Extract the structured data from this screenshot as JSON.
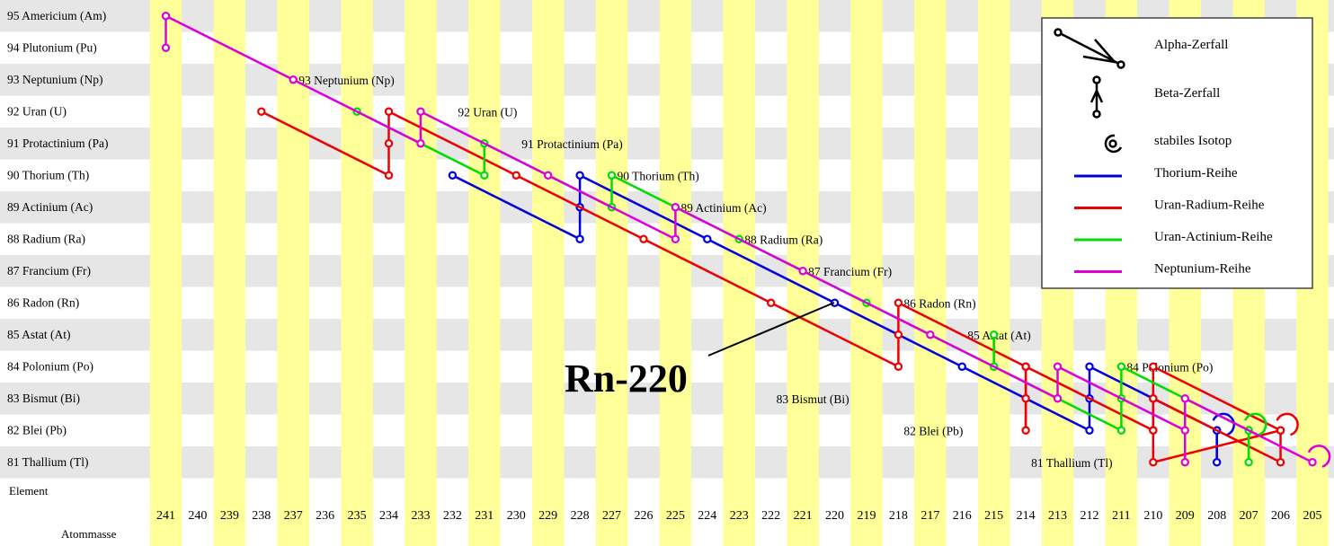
{
  "elements": [
    "95 Americium (Am)",
    "94 Plutonium (Pu)",
    "93 Neptunium (Np)",
    "92 Uran (U)",
    "91 Protactinium (Pa)",
    "90 Thorium (Th)",
    "89 Actinium (Ac)",
    "88 Radium (Ra)",
    "87 Francium (Fr)",
    "86 Radon (Rn)",
    "85 Astat (At)",
    "84 Polonium (Po)",
    "83 Bismut (Bi)",
    "82 Blei (Pb)",
    "81 Thallium (Tl)"
  ],
  "masses": [
    241,
    240,
    239,
    238,
    237,
    236,
    235,
    234,
    233,
    232,
    231,
    230,
    229,
    228,
    227,
    226,
    225,
    224,
    223,
    222,
    221,
    220,
    219,
    218,
    217,
    216,
    215,
    214,
    213,
    212,
    211,
    210,
    209,
    208,
    207,
    206,
    205
  ],
  "corner": {
    "element": "Element",
    "mass": "Atommasse"
  },
  "diagonal_labels": [
    {
      "z": 93,
      "a": 237,
      "text": "93 Neptunium (Np)"
    },
    {
      "z": 92,
      "a": 232,
      "text": "92 Uran (U)"
    },
    {
      "z": 91,
      "a": 230,
      "text": "91 Protactinium (Pa)"
    },
    {
      "z": 90,
      "a": 227,
      "text": "90 Thorium (Th)"
    },
    {
      "z": 89,
      "a": 225,
      "text": "89 Actinium (Ac)"
    },
    {
      "z": 88,
      "a": 223,
      "text": "88 Radium (Ra)"
    },
    {
      "z": 87,
      "a": 221,
      "text": "87 Francium (Fr)"
    },
    {
      "z": 86,
      "a": 218,
      "text": "86 Radon (Rn)"
    },
    {
      "z": 85,
      "a": 216,
      "text": "85 Astat (At)"
    },
    {
      "z": 84,
      "a": 211,
      "text": "84 Polonium (Po)"
    },
    {
      "z": 83,
      "a": 222,
      "text": "83 Bismut (Bi)"
    },
    {
      "z": 82,
      "a": 218,
      "text": "82 Blei (Pb)"
    },
    {
      "z": 81,
      "a": 214,
      "text": "81 Thallium (Tl)"
    }
  ],
  "highlight": {
    "label": "Rn-220",
    "z": 86,
    "a": 220
  },
  "legend": {
    "alpha": "Alpha-Zerfall",
    "beta": "Beta-Zerfall",
    "stable": "stabiles Isotop",
    "series_labels": [
      "Thorium-Reihe",
      "Uran-Radium-Reihe",
      "Uran-Actinium-Reihe",
      "Neptunium-Reihe"
    ]
  },
  "colors": {
    "thorium": "#0000dd",
    "uranium": "#ee0000",
    "actinium": "#00dd00",
    "neptunium": "#dd00dd",
    "row_stripe": "#e6e6e6",
    "col_stripe": "#ffff99",
    "legend_border": "#444444",
    "text": "#000000"
  },
  "series": [
    {
      "key": "thorium",
      "stable": [
        82,
        208
      ],
      "chain": [
        [
          90,
          232
        ],
        [
          88,
          228
        ],
        [
          89,
          228
        ],
        [
          90,
          228
        ],
        [
          88,
          224
        ],
        [
          86,
          220
        ],
        [
          84,
          216
        ],
        [
          82,
          212
        ],
        [
          83,
          212
        ],
        [
          84,
          212
        ],
        [
          82,
          208
        ],
        [
          81,
          208
        ],
        [
          82,
          208
        ]
      ]
    },
    {
      "key": "uranium",
      "stable": [
        82,
        206
      ],
      "chain": [
        [
          92,
          238
        ],
        [
          90,
          234
        ],
        [
          91,
          234
        ],
        [
          92,
          234
        ],
        [
          90,
          230
        ],
        [
          88,
          226
        ],
        [
          86,
          222
        ],
        [
          84,
          218
        ],
        [
          85,
          218
        ],
        [
          86,
          218
        ],
        [
          84,
          214
        ],
        [
          82,
          214
        ],
        [
          83,
          214
        ],
        [
          84,
          214
        ],
        [
          82,
          210
        ],
        [
          83,
          210
        ],
        [
          84,
          210
        ],
        [
          82,
          206
        ],
        [
          81,
          210
        ],
        [
          82,
          210
        ],
        [
          83,
          210
        ],
        [
          81,
          206
        ],
        [
          82,
          206
        ]
      ]
    },
    {
      "key": "actinium",
      "stable": [
        82,
        207
      ],
      "chain": [
        [
          92,
          235
        ],
        [
          90,
          231
        ],
        [
          91,
          231
        ],
        [
          89,
          227
        ],
        [
          90,
          227
        ],
        [
          88,
          223
        ],
        [
          86,
          219
        ],
        [
          84,
          215
        ],
        [
          85,
          215
        ],
        [
          84,
          215
        ],
        [
          82,
          211
        ],
        [
          83,
          211
        ],
        [
          84,
          211
        ],
        [
          82,
          207
        ],
        [
          81,
          207
        ],
        [
          82,
          207
        ]
      ]
    },
    {
      "key": "neptunium",
      "stable": [
        81,
        205
      ],
      "chain": [
        [
          94,
          241
        ],
        [
          95,
          241
        ],
        [
          93,
          237
        ],
        [
          91,
          233
        ],
        [
          92,
          233
        ],
        [
          90,
          229
        ],
        [
          88,
          225
        ],
        [
          89,
          225
        ],
        [
          87,
          221
        ],
        [
          85,
          217
        ],
        [
          83,
          213
        ],
        [
          84,
          213
        ],
        [
          82,
          209
        ],
        [
          81,
          209
        ],
        [
          83,
          209
        ],
        [
          81,
          205
        ]
      ]
    }
  ]
}
